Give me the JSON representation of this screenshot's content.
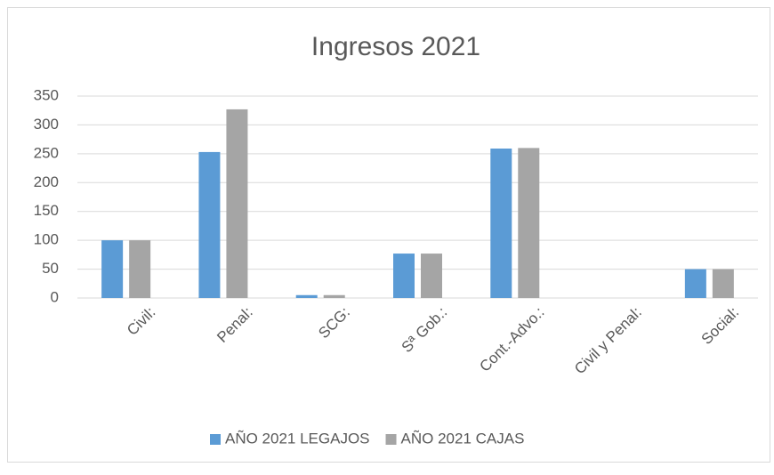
{
  "chart_data": {
    "type": "bar",
    "title": "Ingresos 2021",
    "categories": [
      "Civil:",
      "Penal:",
      "SCG:",
      "Sª Gob.:",
      "Cont.-Advo.:",
      "Civil y Penal:",
      "Social:"
    ],
    "series": [
      {
        "name": "AÑO 2021 LEGAJOS",
        "color": "#5b9bd5",
        "values": [
          100,
          253,
          5,
          77,
          259,
          0,
          50
        ]
      },
      {
        "name": "AÑO 2021 CAJAS",
        "color": "#a5a5a5",
        "values": [
          100,
          327,
          5,
          77,
          260,
          0,
          50
        ]
      }
    ],
    "ylim": [
      0,
      350
    ],
    "yticks": [
      0,
      50,
      100,
      150,
      200,
      250,
      300,
      350
    ],
    "grid": true,
    "legend": "bottom"
  }
}
